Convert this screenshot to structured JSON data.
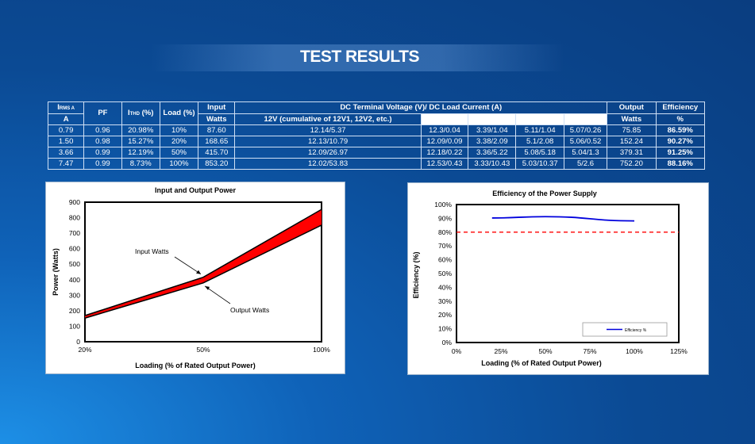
{
  "page": {
    "title": "TEST RESULTS"
  },
  "table": {
    "headers": {
      "irms_label": "I",
      "irms_sub": "RMS A",
      "irms_unit": "A",
      "pf": "PF",
      "ithd_label": "I",
      "ithd_sub": "THD",
      "ithd_unit": " (%)",
      "load": "Load (%)",
      "input_watts_1": "Input",
      "input_watts_2": "Watts",
      "dc_terminal": "DC Terminal Voltage (V)/ DC Load Current (A)",
      "rail_12v": "12V (cumulative of 12V1, 12V2, etc.)",
      "output_watts_1": "Output",
      "output_watts_2": "Watts",
      "efficiency_1": "Efficiency",
      "efficiency_2": "%"
    },
    "rows": [
      {
        "irms": "0.79",
        "pf": "0.96",
        "ithd": "20.98%",
        "load": "10%",
        "input_watts": "87.60",
        "v12": "12.14/5.37",
        "r2": "12.3/0.04",
        "r3": "3.39/1.04",
        "r4": "5.11/1.04",
        "r5": "5.07/0.26",
        "output_watts": "75.85",
        "efficiency": "86.59%"
      },
      {
        "irms": "1.50",
        "pf": "0.98",
        "ithd": "15.27%",
        "load": "20%",
        "input_watts": "168.65",
        "v12": "12.13/10.79",
        "r2": "12.09/0.09",
        "r3": "3.38/2.09",
        "r4": "5.1/2.08",
        "r5": "5.06/0.52",
        "output_watts": "152.24",
        "efficiency": "90.27%"
      },
      {
        "irms": "3.66",
        "pf": "0.99",
        "ithd": "12.19%",
        "load": "50%",
        "input_watts": "415.70",
        "v12": "12.09/26.97",
        "r2": "12.18/0.22",
        "r3": "3.36/5.22",
        "r4": "5.08/5.18",
        "r5": "5.04/1.3",
        "output_watts": "379.31",
        "efficiency": "91.25%"
      },
      {
        "irms": "7.47",
        "pf": "0.99",
        "ithd": "8.73%",
        "load": "100%",
        "input_watts": "853.20",
        "v12": "12.02/53.83",
        "r2": "12.53/0.43",
        "r3": "3.33/10.43",
        "r4": "5.03/10.37",
        "r5": "5/2.6",
        "output_watts": "752.20",
        "efficiency": "88.16%"
      }
    ]
  },
  "chart_data": [
    {
      "type": "area",
      "title": "Input and Output Power",
      "xlabel": "Loading (% of Rated Output Power)",
      "ylabel": "Power (Watts)",
      "categories": [
        "20%",
        "50%",
        "100%"
      ],
      "x_ticks": [
        "20%",
        "50%",
        "100%"
      ],
      "y_ticks": [
        "0",
        "100",
        "200",
        "300",
        "400",
        "500",
        "600",
        "700",
        "800",
        "900"
      ],
      "ylim": [
        0,
        900
      ],
      "series": [
        {
          "name": "Input Watts",
          "values": [
            168.65,
            415.7,
            853.2
          ]
        },
        {
          "name": "Output Watts",
          "values": [
            152.24,
            379.31,
            752.2
          ]
        }
      ],
      "annotations": [
        {
          "text": "Input Watts"
        },
        {
          "text": "Output Watts"
        }
      ],
      "fill_color": "#ff0000",
      "grid": false,
      "legend": "none"
    },
    {
      "type": "line",
      "title": "Efficiency of the Power Supply",
      "xlabel": "Loading (% of Rated Output Power)",
      "ylabel": "Efficiency (%)",
      "x": [
        20,
        50,
        100
      ],
      "x_ticks": [
        "0%",
        "25%",
        "50%",
        "75%",
        "100%",
        "125%"
      ],
      "xlim": [
        0,
        125
      ],
      "y_ticks": [
        "0%",
        "10%",
        "20%",
        "30%",
        "40%",
        "50%",
        "60%",
        "70%",
        "80%",
        "90%",
        "100%"
      ],
      "ylim": [
        0,
        100
      ],
      "series": [
        {
          "name": "Efficiency %",
          "values": [
            90.27,
            91.25,
            88.16
          ],
          "color": "#0000dd"
        }
      ],
      "reference_line": {
        "value": 80,
        "color": "#ff0000",
        "style": "dashed"
      },
      "grid": false,
      "legend": "bottom-right"
    }
  ]
}
